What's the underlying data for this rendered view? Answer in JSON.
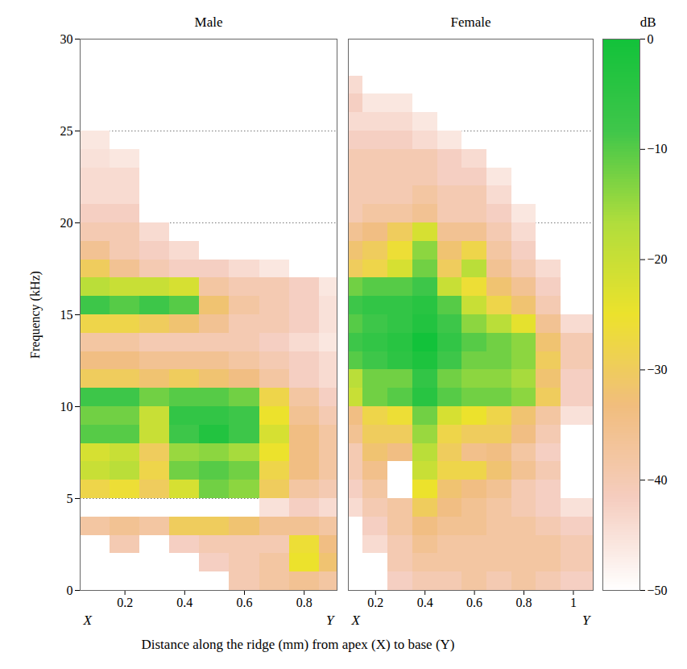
{
  "chart_data": {
    "type": "heatmap",
    "x_label": "Distance along the ridge (mm) from apex (X) to base (Y)",
    "y_label": "Frequency (kHz)",
    "ylim": [
      0,
      30
    ],
    "yticks": [
      0,
      5,
      10,
      15,
      20,
      25,
      30
    ],
    "grid": true,
    "color_bar": {
      "label": "dB",
      "range": [
        -50,
        0
      ],
      "ticks": [
        {
          "value": 0,
          "label": "0"
        },
        {
          "value": -10,
          "label": "−10"
        },
        {
          "value": -20,
          "label": "−20"
        },
        {
          "value": -30,
          "label": "−30"
        },
        {
          "value": -40,
          "label": "−40"
        },
        {
          "value": -50,
          "label": "−50"
        }
      ],
      "colors": [
        "#ffffff",
        "#f5cdbf",
        "#f1bd7e",
        "#ece22c",
        "#b0dd3c",
        "#3fc64a",
        "#12c23a"
      ]
    },
    "panels": [
      {
        "title": "Male",
        "x_end_labels": [
          "X",
          "Y"
        ],
        "xlim": [
          0.05,
          0.91
        ],
        "xticks": [
          0.2,
          0.4,
          0.6,
          0.8
        ],
        "x_bins": [
          0.05,
          0.15,
          0.25,
          0.35,
          0.45,
          0.55,
          0.65,
          0.75,
          0.85,
          0.91
        ],
        "y_bins": [
          0,
          1,
          2,
          3,
          4,
          5,
          6,
          7,
          8,
          9,
          10,
          11,
          12,
          13,
          14,
          15,
          16,
          17,
          18,
          19,
          20,
          21,
          22,
          23,
          24,
          25,
          26,
          27,
          28,
          29,
          30
        ],
        "cells": [
          [
            null,
            null,
            null,
            null,
            null,
            -40,
            -38,
            -36,
            -38
          ],
          [
            null,
            null,
            null,
            null,
            -42,
            -40,
            -38,
            -25,
            -32
          ],
          [
            null,
            -40,
            null,
            -42,
            -40,
            -40,
            -40,
            -26,
            -34
          ],
          [
            -38,
            -36,
            -38,
            -30,
            -30,
            -32,
            -36,
            -36,
            -38
          ],
          [
            null,
            null,
            null,
            null,
            null,
            null,
            -45,
            -42,
            -44
          ],
          [
            -28,
            -26,
            -30,
            -22,
            -12,
            -14,
            -30,
            -38,
            -40
          ],
          [
            -20,
            -18,
            -28,
            -12,
            -10,
            -12,
            -28,
            -34,
            -38
          ],
          [
            -22,
            -20,
            -30,
            -15,
            -14,
            -16,
            -25,
            -34,
            -38
          ],
          [
            -10,
            -10,
            -20,
            -8,
            -3,
            -8,
            -22,
            -34,
            -38
          ],
          [
            -12,
            -12,
            -20,
            -6,
            -6,
            -8,
            -25,
            -36,
            -40
          ],
          [
            -8,
            -8,
            -12,
            -10,
            -10,
            -12,
            -28,
            -38,
            -42
          ],
          [
            -30,
            -30,
            -32,
            -30,
            -32,
            -34,
            -38,
            -42,
            -44
          ],
          [
            -34,
            -34,
            -36,
            -36,
            -36,
            -38,
            -40,
            -42,
            -44
          ],
          [
            -38,
            -38,
            -40,
            -40,
            -40,
            -40,
            -42,
            -44,
            -46
          ],
          [
            -28,
            -28,
            -30,
            -32,
            -36,
            -40,
            -40,
            -42,
            -45
          ],
          [
            -8,
            -10,
            -8,
            -10,
            -32,
            -38,
            -40,
            -42,
            -45
          ],
          [
            -18,
            -20,
            -20,
            -22,
            -38,
            -40,
            -40,
            -42,
            -46
          ],
          [
            -30,
            -36,
            -40,
            -42,
            -42,
            -44,
            -46,
            null,
            null
          ],
          [
            -36,
            -40,
            -42,
            -44,
            null,
            null,
            null,
            null,
            null
          ],
          [
            -40,
            -40,
            -44,
            null,
            null,
            null,
            null,
            null,
            null
          ],
          [
            -42,
            -42,
            null,
            null,
            null,
            null,
            null,
            null,
            null
          ],
          [
            -44,
            -44,
            null,
            null,
            null,
            null,
            null,
            null,
            null
          ],
          [
            -44,
            -44,
            null,
            null,
            null,
            null,
            null,
            null,
            null
          ],
          [
            -45,
            -46,
            null,
            null,
            null,
            null,
            null,
            null,
            null
          ],
          [
            -46,
            null,
            null,
            null,
            null,
            null,
            null,
            null,
            null
          ],
          [
            null,
            null,
            null,
            null,
            null,
            null,
            null,
            null,
            null
          ],
          [
            null,
            null,
            null,
            null,
            null,
            null,
            null,
            null,
            null
          ],
          [
            null,
            null,
            null,
            null,
            null,
            null,
            null,
            null,
            null
          ],
          [
            null,
            null,
            null,
            null,
            null,
            null,
            null,
            null,
            null
          ],
          [
            null,
            null,
            null,
            null,
            null,
            null,
            null,
            null,
            null
          ]
        ]
      },
      {
        "title": "Female",
        "tick_labels": "x",
        "x_end_labels": [
          "X",
          "Y"
        ],
        "xlim": [
          0.09,
          1.08
        ],
        "xticks": [
          0.2,
          0.4,
          0.6,
          0.8,
          1
        ],
        "x_bins": [
          0.09,
          0.15,
          0.25,
          0.35,
          0.45,
          0.55,
          0.65,
          0.75,
          0.85,
          0.95,
          1.08
        ],
        "y_bins": [
          0,
          1,
          2,
          3,
          4,
          5,
          6,
          7,
          8,
          9,
          10,
          11,
          12,
          13,
          14,
          15,
          16,
          17,
          18,
          19,
          20,
          21,
          22,
          23,
          24,
          25,
          26,
          27,
          28,
          29,
          30
        ],
        "cells": [
          [
            null,
            null,
            -42,
            -40,
            -40,
            -38,
            -40,
            -38,
            -40,
            -42
          ],
          [
            null,
            null,
            -40,
            -38,
            -38,
            -38,
            -38,
            -38,
            -38,
            -40
          ],
          [
            null,
            -44,
            -40,
            -36,
            -38,
            -38,
            -38,
            -38,
            -38,
            -40
          ],
          [
            null,
            -42,
            -38,
            -34,
            -36,
            -36,
            -38,
            -38,
            -40,
            -42
          ],
          [
            -44,
            -40,
            -38,
            -30,
            -34,
            -36,
            -38,
            -40,
            -42,
            -45
          ],
          [
            -42,
            -38,
            null,
            -25,
            -32,
            -34,
            -36,
            -40,
            -42,
            null
          ],
          [
            -40,
            -35,
            null,
            -20,
            -28,
            -28,
            -32,
            -36,
            -40,
            null
          ],
          [
            -40,
            -32,
            -34,
            -18,
            -30,
            -35,
            -34,
            -38,
            -42,
            null
          ],
          [
            -36,
            -30,
            -30,
            -15,
            -28,
            -30,
            -30,
            -34,
            -40,
            null
          ],
          [
            -34,
            -28,
            -26,
            -12,
            -22,
            -25,
            -28,
            -32,
            -38,
            -45
          ],
          [
            -20,
            -12,
            -10,
            -4,
            -10,
            -12,
            -12,
            -14,
            -30,
            -42
          ],
          [
            -18,
            -12,
            -12,
            -6,
            -12,
            -14,
            -14,
            -16,
            -32,
            -42
          ],
          [
            -10,
            -8,
            -5,
            -2,
            -8,
            -12,
            -12,
            -14,
            -30,
            -40
          ],
          [
            -8,
            -6,
            -4,
            0,
            -6,
            -10,
            -12,
            -14,
            -32,
            -40
          ],
          [
            -10,
            -8,
            -6,
            -3,
            -8,
            -14,
            -18,
            -24,
            -36,
            -44
          ],
          [
            -8,
            -6,
            -6,
            -4,
            -10,
            -20,
            -28,
            -32,
            -40,
            null
          ],
          [
            -12,
            -10,
            -10,
            -8,
            -20,
            -26,
            -32,
            -36,
            -42,
            null
          ],
          [
            -30,
            -28,
            -22,
            -12,
            -30,
            -18,
            -36,
            -40,
            -44,
            null
          ],
          [
            -32,
            -30,
            -26,
            -14,
            -32,
            -28,
            -38,
            -42,
            null,
            null
          ],
          [
            -36,
            -34,
            -30,
            -22,
            -36,
            -36,
            -40,
            -44,
            null,
            null
          ],
          [
            -40,
            -38,
            -38,
            -36,
            -40,
            -40,
            -42,
            -46,
            null,
            null
          ],
          [
            -40,
            -40,
            -40,
            -38,
            -40,
            -40,
            -44,
            null,
            null,
            null
          ],
          [
            -40,
            -40,
            -40,
            -40,
            -42,
            -42,
            -46,
            null,
            null,
            null
          ],
          [
            -40,
            -40,
            -40,
            -40,
            -42,
            -44,
            null,
            null,
            null,
            null
          ],
          [
            -42,
            -42,
            -42,
            -44,
            -46,
            null,
            null,
            null,
            null,
            null
          ],
          [
            -44,
            -44,
            -44,
            -46,
            null,
            null,
            null,
            null,
            null,
            null
          ],
          [
            -42,
            -46,
            -46,
            null,
            null,
            null,
            null,
            null,
            null,
            null
          ],
          [
            -44,
            null,
            null,
            null,
            null,
            null,
            null,
            null,
            null,
            null
          ],
          [
            null,
            null,
            null,
            null,
            null,
            null,
            null,
            null,
            null,
            null
          ],
          [
            null,
            null,
            null,
            null,
            null,
            null,
            null,
            null,
            null,
            null
          ]
        ]
      }
    ]
  }
}
